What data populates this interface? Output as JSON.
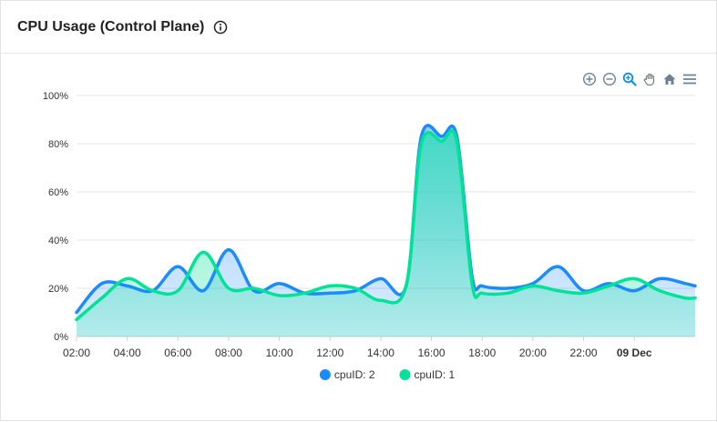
{
  "header": {
    "title": "CPU Usage (Control Plane)",
    "info_icon": "info-circle-icon"
  },
  "toolbar": {
    "tools": [
      "zoom-in-icon",
      "zoom-out-icon",
      "selection-zoom-icon",
      "pan-hand-icon",
      "reset-home-icon",
      "menu-icon"
    ]
  },
  "colors": {
    "series1": "#1a8cff",
    "series2": "#00e396"
  },
  "chart_data": {
    "type": "area",
    "title": "",
    "xlabel": "",
    "ylabel": "",
    "ylim": [
      0,
      100
    ],
    "y_ticks": [
      "0%",
      "20%",
      "40%",
      "60%",
      "80%",
      "100%"
    ],
    "x_tick_labels": [
      "02:00",
      "04:00",
      "06:00",
      "08:00",
      "10:00",
      "12:00",
      "14:00",
      "16:00",
      "18:00",
      "20:00",
      "22:00",
      "09 Dec"
    ],
    "x_tick_hours": [
      2,
      4,
      6,
      8,
      10,
      12,
      14,
      16,
      18,
      20,
      22,
      24
    ],
    "x_range_hours": [
      2,
      26.4
    ],
    "legend_position": "bottom",
    "series": [
      {
        "name": "cpuID: 2",
        "color": "#1a8cff",
        "x": [
          2,
          3,
          4,
          5,
          6,
          7,
          8,
          9,
          10,
          11,
          12,
          13,
          14,
          15,
          15.6,
          16.4,
          17,
          17.6,
          18,
          19,
          20,
          21,
          22,
          23,
          24,
          25,
          26,
          26.4
        ],
        "values": [
          10,
          22,
          21,
          19,
          29,
          19,
          36,
          19,
          22,
          18,
          18,
          19,
          24,
          21,
          83,
          83,
          83,
          25,
          21,
          20,
          22,
          29,
          19,
          22,
          19,
          24,
          22,
          21
        ]
      },
      {
        "name": "cpuID: 1",
        "color": "#00e396",
        "x": [
          2,
          3,
          4,
          5,
          6,
          7,
          8,
          9,
          10,
          11,
          12,
          13,
          14,
          15,
          15.6,
          16.4,
          17,
          17.6,
          18,
          19,
          20,
          21,
          22,
          23,
          24,
          25,
          26,
          26.4
        ],
        "values": [
          7,
          16,
          24,
          19,
          19,
          35,
          20,
          20,
          17,
          18,
          21,
          20,
          15,
          21,
          80,
          81,
          81,
          22,
          18,
          18,
          21,
          19,
          18,
          21,
          24,
          19,
          16,
          16
        ]
      }
    ]
  }
}
